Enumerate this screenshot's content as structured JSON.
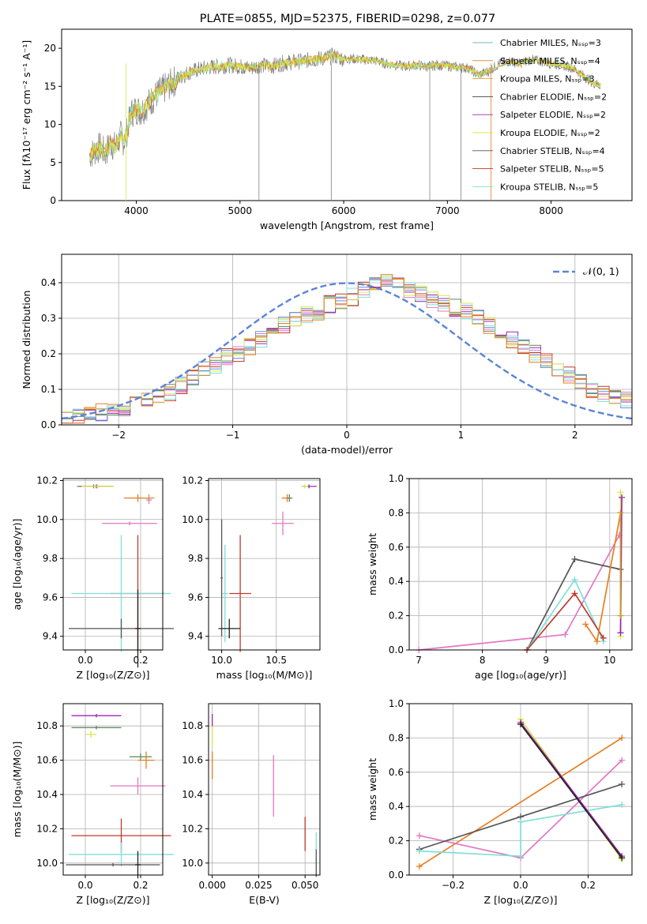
{
  "figure": {
    "title": "PLATE=0855, MJD=52375, FIBERID=0298, z=0.077"
  },
  "series_colors": [
    "#5a8a5a",
    "#e67e22",
    "#c9a01c",
    "#222222",
    "#9b27b0",
    "#d4e84c",
    "#555555",
    "#c0392b",
    "#7fe0d8",
    "#e377c2"
  ],
  "chart_data": [
    {
      "type": "line",
      "xlabel": "wavelength [Angstrom, rest frame]",
      "ylabel": "Flux [fλ10⁻¹⁷ erg cm⁻² s⁻¹ A⁻¹]",
      "xlim": [
        3280,
        8780
      ],
      "ylim": [
        0,
        22.5
      ],
      "xticks": [
        "4000",
        "5000",
        "6000",
        "7000",
        "8000"
      ],
      "yticks": [
        "0",
        "5",
        "10",
        "15",
        "20"
      ],
      "grid": false,
      "legend_position": "upper-right",
      "legend": [
        "Chabrier MILES, Nₛₛₚ=3",
        "Salpeter MILES, Nₛₛₚ=4",
        "Kroupa MILES, Nₛₛₚ=3",
        "Chabrier ELODIE, Nₛₛₚ=2",
        "Salpeter ELODIE, Nₛₛₚ=2",
        "Kroupa ELODIE, Nₛₛₚ=2",
        "Chabrier STELIB, Nₛₛₚ=4",
        "Salpeter STELIB, Nₛₛₚ=5",
        "Kroupa STELIB, Nₛₛₚ=5"
      ],
      "legend_colors": [
        "#7fb3c0",
        "#e67e22",
        "#e6a23c",
        "#444444",
        "#9b27b0",
        "#d4e84c",
        "#555555",
        "#c0392b",
        "#7fe0d8"
      ],
      "spectrum": {
        "x": [
          3550,
          3600,
          3650,
          3700,
          3750,
          3800,
          3850,
          3880,
          3900,
          3950,
          4000,
          4050,
          4100,
          4150,
          4200,
          4300,
          4400,
          4500,
          4600,
          4700,
          4800,
          4900,
          5000,
          5100,
          5200,
          5300,
          5400,
          5500,
          5600,
          5700,
          5800,
          5900,
          6000,
          6100,
          6200,
          6300,
          6400,
          6500,
          6600,
          6700,
          6800,
          6900,
          7000,
          7100,
          7200,
          7300,
          7400,
          7500,
          7600,
          7700,
          7800,
          7900,
          8000,
          8100,
          8200,
          8300,
          8400,
          8500
        ],
        "y": [
          6,
          6.5,
          7,
          6.2,
          7.5,
          7,
          8.5,
          7.8,
          8.5,
          11.5,
          12,
          11.8,
          12.5,
          13.2,
          14,
          15,
          16,
          16.8,
          17.2,
          17.5,
          17.6,
          17.8,
          17.6,
          17.4,
          17.8,
          17.6,
          18,
          18.2,
          18.3,
          18.5,
          18.7,
          19,
          18.6,
          18.6,
          18.5,
          18.4,
          18,
          17.8,
          17.6,
          17.8,
          17.6,
          17.8,
          17.7,
          17.5,
          17.4,
          16.5,
          17,
          18,
          18.3,
          18,
          18.5,
          18.3,
          18,
          17.8,
          17.5,
          16.5,
          15.5,
          15
        ]
      }
    },
    {
      "type": "line",
      "xlabel": "(data-model)/error",
      "ylabel": "Normed distribution",
      "xlim": [
        -2.5,
        2.5
      ],
      "ylim": [
        0,
        0.48
      ],
      "xticks": [
        "−2",
        "−1",
        "0",
        "1",
        "2"
      ],
      "yticks": [
        "0.0",
        "0.1",
        "0.2",
        "0.3",
        "0.4"
      ],
      "grid": true,
      "legend_position": "upper-right",
      "legend": [
        "𝒩(0, 1)"
      ],
      "gaussian": {
        "mu": 0,
        "sigma": 1
      },
      "histogram": {
        "bin_edges_from": -2.5,
        "bin_width": 0.1,
        "values": [
          0.02,
          0.025,
          0.03,
          0.035,
          0.045,
          0.05,
          0.065,
          0.07,
          0.08,
          0.09,
          0.11,
          0.13,
          0.155,
          0.17,
          0.19,
          0.2,
          0.22,
          0.24,
          0.26,
          0.28,
          0.3,
          0.31,
          0.32,
          0.34,
          0.35,
          0.36,
          0.38,
          0.39,
          0.4,
          0.39,
          0.38,
          0.37,
          0.35,
          0.34,
          0.33,
          0.32,
          0.3,
          0.28,
          0.26,
          0.24,
          0.22,
          0.2,
          0.18,
          0.16,
          0.14,
          0.12,
          0.1,
          0.09,
          0.08,
          0.07
        ]
      }
    },
    {
      "type": "scatter",
      "xlabel": "Z [log₁₀(Z/Z⊙)]",
      "ylabel": "age  [log₁₀(age/yr)]",
      "xlim": [
        -0.08,
        0.28
      ],
      "ylim": [
        9.33,
        10.21
      ],
      "xticks": [
        {
          "v": 0.0,
          "t": "0.0"
        },
        {
          "v": 0.2,
          "t": "0.2"
        }
      ],
      "yticks": [
        {
          "v": 9.4,
          "t": "9.4"
        },
        {
          "v": 9.6,
          "t": "9.6"
        },
        {
          "v": 9.8,
          "t": "9.8"
        },
        {
          "v": 10.0,
          "t": "10.0"
        },
        {
          "v": 10.2,
          "t": "10.2"
        }
      ],
      "grid": true,
      "errorbars": [
        {
          "x": 0.03,
          "y": 10.17,
          "xerr": 0.06,
          "yerr": 0.01,
          "c": 0
        },
        {
          "x": 0.04,
          "y": 10.17,
          "xerr": 0.06,
          "yerr": 0.01,
          "c": 4
        },
        {
          "x": 0.045,
          "y": 10.17,
          "xerr": 0.06,
          "yerr": 0.01,
          "c": 5
        },
        {
          "x": 0.19,
          "y": 10.11,
          "xerr": 0.05,
          "yerr": 0.02,
          "c": 1
        },
        {
          "x": 0.23,
          "y": 10.11,
          "xerr": 0.02,
          "yerr": 0.02,
          "c": 2
        },
        {
          "x": 0.23,
          "y": 10.1,
          "xerr": 0.01,
          "yerr": 0.02,
          "c": 9
        },
        {
          "x": 0.16,
          "y": 9.98,
          "xerr": 0.1,
          "yerr": 0.01,
          "c": 9
        },
        {
          "x": 0.19,
          "y": 9.62,
          "xerr": 0.1,
          "yerr": 0.3,
          "c": 7
        },
        {
          "x": 0.13,
          "y": 9.62,
          "xerr": 0.18,
          "yerr": 0.3,
          "c": 8
        },
        {
          "x": 0.13,
          "y": 9.44,
          "xerr": 0.19,
          "yerr": 0.05,
          "c": 6
        },
        {
          "x": 0.19,
          "y": 9.44,
          "xerr": 0.01,
          "yerr": 0.2,
          "c": 3
        }
      ]
    },
    {
      "type": "scatter",
      "xlabel": "mass [log₁₀(M/M⊙)]",
      "ylabel": "",
      "xlim": [
        9.88,
        10.9
      ],
      "ylim": [
        9.33,
        10.21
      ],
      "xticks": [
        {
          "v": 10.0,
          "t": "10.0"
        },
        {
          "v": 10.5,
          "t": "10.5"
        }
      ],
      "yticks": [
        {
          "v": 9.4,
          "t": "9.4"
        },
        {
          "v": 9.6,
          "t": "9.6"
        },
        {
          "v": 9.8,
          "t": "9.8"
        },
        {
          "v": 10.0,
          "t": "10.0"
        },
        {
          "v": 10.2,
          "t": "10.2"
        }
      ],
      "grid": true,
      "errorbars": [
        {
          "x": 10.8,
          "y": 10.17,
          "xerr": 0.07,
          "yerr": 0.01,
          "c": 4
        },
        {
          "x": 10.76,
          "y": 10.17,
          "xerr": 0.03,
          "yerr": 0.01,
          "c": 5
        },
        {
          "x": 10.6,
          "y": 10.11,
          "xerr": 0.05,
          "yerr": 0.02,
          "c": 1
        },
        {
          "x": 10.62,
          "y": 10.11,
          "xerr": 0.02,
          "yerr": 0.02,
          "c": 0
        },
        {
          "x": 10.56,
          "y": 9.98,
          "xerr": 0.1,
          "yerr": 0.06,
          "c": 9
        },
        {
          "x": 10.03,
          "y": 9.62,
          "xerr": 0.03,
          "yerr": 0.25,
          "c": 8
        },
        {
          "x": 10.17,
          "y": 9.62,
          "xerr": 0.1,
          "yerr": 0.3,
          "c": 7
        },
        {
          "x": 10.0,
          "y": 9.7,
          "xerr": 0.01,
          "yerr": 0.3,
          "c": 6
        },
        {
          "x": 10.07,
          "y": 9.44,
          "xerr": 0.1,
          "yerr": 0.05,
          "c": 3
        }
      ]
    },
    {
      "type": "line",
      "xlabel": "age  [log₁₀(age/yr)]",
      "ylabel": "mass weight",
      "xlim": [
        6.85,
        10.35
      ],
      "ylim": [
        0,
        1
      ],
      "xticks": [
        {
          "v": 7,
          "t": "7"
        },
        {
          "v": 8,
          "t": "8"
        },
        {
          "v": 9,
          "t": "9"
        },
        {
          "v": 10,
          "t": "10"
        }
      ],
      "yticks": [
        {
          "v": 0,
          "t": "0.0"
        },
        {
          "v": 0.2,
          "t": "0.2"
        },
        {
          "v": 0.4,
          "t": "0.4"
        },
        {
          "v": 0.6,
          "t": "0.6"
        },
        {
          "v": 0.8,
          "t": "0.8"
        },
        {
          "v": 1.0,
          "t": "1.0"
        }
      ],
      "grid": true,
      "series": [
        {
          "c": 9,
          "x": [
            7.0,
            9.3,
            10.15
          ],
          "y": [
            0.0,
            0.09,
            0.67
          ]
        },
        {
          "c": 6,
          "x": [
            8.7,
            9.45,
            10.17
          ],
          "y": [
            0.0,
            0.53,
            0.47
          ]
        },
        {
          "c": 8,
          "x": [
            8.7,
            9.45,
            9.9
          ],
          "y": [
            0.0,
            0.41,
            0.05
          ]
        },
        {
          "c": 7,
          "x": [
            8.7,
            9.45,
            9.9
          ],
          "y": [
            0.0,
            0.33,
            0.07
          ]
        },
        {
          "c": 1,
          "x": [
            9.62,
            9.8,
            10.17
          ],
          "y": [
            0.15,
            0.05,
            0.8
          ]
        },
        {
          "c": 5,
          "x": [
            10.17,
            10.17
          ],
          "y": [
            0.08,
            0.92
          ]
        },
        {
          "c": 4,
          "x": [
            10.17,
            10.19
          ],
          "y": [
            0.1,
            0.89
          ]
        },
        {
          "c": 2,
          "x": [
            10.17,
            10.17
          ],
          "y": [
            0.2,
            0.8
          ]
        }
      ]
    },
    {
      "type": "scatter",
      "xlabel": "Z [log₁₀(Z/Z⊙)]",
      "ylabel": "mass [log₁₀(M/M⊙)]",
      "xlim": [
        -0.08,
        0.28
      ],
      "ylim": [
        9.93,
        10.93
      ],
      "xticks": [
        {
          "v": 0.0,
          "t": "0.0"
        },
        {
          "v": 0.2,
          "t": "0.2"
        }
      ],
      "yticks": [
        {
          "v": 10.0,
          "t": "10.0"
        },
        {
          "v": 10.2,
          "t": "10.2"
        },
        {
          "v": 10.4,
          "t": "10.4"
        },
        {
          "v": 10.6,
          "t": "10.6"
        },
        {
          "v": 10.8,
          "t": "10.8"
        }
      ],
      "grid": true,
      "errorbars": [
        {
          "x": 0.04,
          "y": 10.86,
          "xerr": 0.09,
          "yerr": 0.01,
          "c": 4
        },
        {
          "x": 0.04,
          "y": 10.79,
          "xerr": 0.09,
          "yerr": 0.01,
          "c": 0
        },
        {
          "x": 0.02,
          "y": 10.75,
          "xerr": 0.02,
          "yerr": 0.02,
          "c": 5
        },
        {
          "x": 0.2,
          "y": 10.62,
          "xerr": 0.04,
          "yerr": 0.02,
          "c": 0
        },
        {
          "x": 0.22,
          "y": 10.6,
          "xerr": 0.03,
          "yerr": 0.05,
          "c": 1
        },
        {
          "x": 0.19,
          "y": 10.45,
          "xerr": 0.1,
          "yerr": 0.05,
          "c": 9
        },
        {
          "x": 0.13,
          "y": 10.16,
          "xerr": 0.18,
          "yerr": 0.1,
          "c": 7
        },
        {
          "x": 0.13,
          "y": 10.05,
          "xerr": 0.19,
          "yerr": 0.07,
          "c": 8
        },
        {
          "x": 0.1,
          "y": 9.99,
          "xerr": 0.17,
          "yerr": 0.01,
          "c": 6
        },
        {
          "x": 0.19,
          "y": 9.99,
          "xerr": 0.01,
          "yerr": 0.08,
          "c": 3
        }
      ]
    },
    {
      "type": "scatter",
      "xlabel": "E(B-V)",
      "ylabel": "",
      "xlim": [
        -0.002,
        0.058
      ],
      "ylim": [
        9.93,
        10.93
      ],
      "xticks": [
        {
          "v": 0.0,
          "t": "0.000"
        },
        {
          "v": 0.025,
          "t": "0.025"
        },
        {
          "v": 0.05,
          "t": "0.050"
        }
      ],
      "yticks": [
        {
          "v": 10.0,
          "t": "10.0"
        },
        {
          "v": 10.2,
          "t": "10.2"
        },
        {
          "v": 10.4,
          "t": "10.4"
        },
        {
          "v": 10.6,
          "t": "10.6"
        },
        {
          "v": 10.8,
          "t": "10.8"
        }
      ],
      "grid": true,
      "errorbars": [
        {
          "x": 0.0,
          "y": 10.83,
          "xerr": 0,
          "yerr": 0.04,
          "c": 4
        },
        {
          "x": 0.0,
          "y": 10.74,
          "xerr": 0,
          "yerr": 0.06,
          "c": 5
        },
        {
          "x": 0.0,
          "y": 10.57,
          "xerr": 0,
          "yerr": 0.08,
          "c": 1
        },
        {
          "x": 0.033,
          "y": 10.45,
          "xerr": 0,
          "yerr": 0.18,
          "c": 9
        },
        {
          "x": 0.05,
          "y": 10.17,
          "xerr": 0,
          "yerr": 0.1,
          "c": 7
        },
        {
          "x": 0.056,
          "y": 10.05,
          "xerr": 0,
          "yerr": 0.13,
          "c": 8
        },
        {
          "x": 0.056,
          "y": 10.0,
          "xerr": 0,
          "yerr": 0.08,
          "c": 6
        }
      ]
    },
    {
      "type": "line",
      "xlabel": "Z [log₁₀(Z/Z⊙)]",
      "ylabel": "mass weight",
      "xlim": [
        -0.33,
        0.33
      ],
      "ylim": [
        0,
        1
      ],
      "xticks": [
        {
          "v": -0.2,
          "t": "−0.2"
        },
        {
          "v": 0.0,
          "t": "0.0"
        },
        {
          "v": 0.2,
          "t": "0.2"
        }
      ],
      "yticks": [
        {
          "v": 0,
          "t": "0.0"
        },
        {
          "v": 0.2,
          "t": "0.2"
        },
        {
          "v": 0.4,
          "t": "0.4"
        },
        {
          "v": 0.6,
          "t": "0.6"
        },
        {
          "v": 0.8,
          "t": "0.8"
        },
        {
          "v": 1.0,
          "t": "1.0"
        }
      ],
      "grid": true,
      "series": [
        {
          "c": 1,
          "x": [
            -0.3,
            0.3
          ],
          "y": [
            0.05,
            0.8
          ]
        },
        {
          "c": 9,
          "x": [
            -0.3,
            0.0,
            0.3
          ],
          "y": [
            0.23,
            0.1,
            0.67
          ]
        },
        {
          "c": 6,
          "x": [
            -0.3,
            0.0,
            0.3
          ],
          "y": [
            0.15,
            0.34,
            0.53
          ]
        },
        {
          "c": 8,
          "x": [
            -0.3,
            0.0,
            0.0,
            0.3
          ],
          "y": [
            0.14,
            0.11,
            0.31,
            0.41
          ]
        },
        {
          "c": 5,
          "x": [
            0.0,
            0.3
          ],
          "y": [
            0.91,
            0.09
          ]
        },
        {
          "c": 4,
          "x": [
            0.0,
            0.3
          ],
          "y": [
            0.89,
            0.11
          ]
        },
        {
          "c": 3,
          "x": [
            0.0,
            0.3
          ],
          "y": [
            0.88,
            0.1
          ]
        }
      ]
    }
  ]
}
